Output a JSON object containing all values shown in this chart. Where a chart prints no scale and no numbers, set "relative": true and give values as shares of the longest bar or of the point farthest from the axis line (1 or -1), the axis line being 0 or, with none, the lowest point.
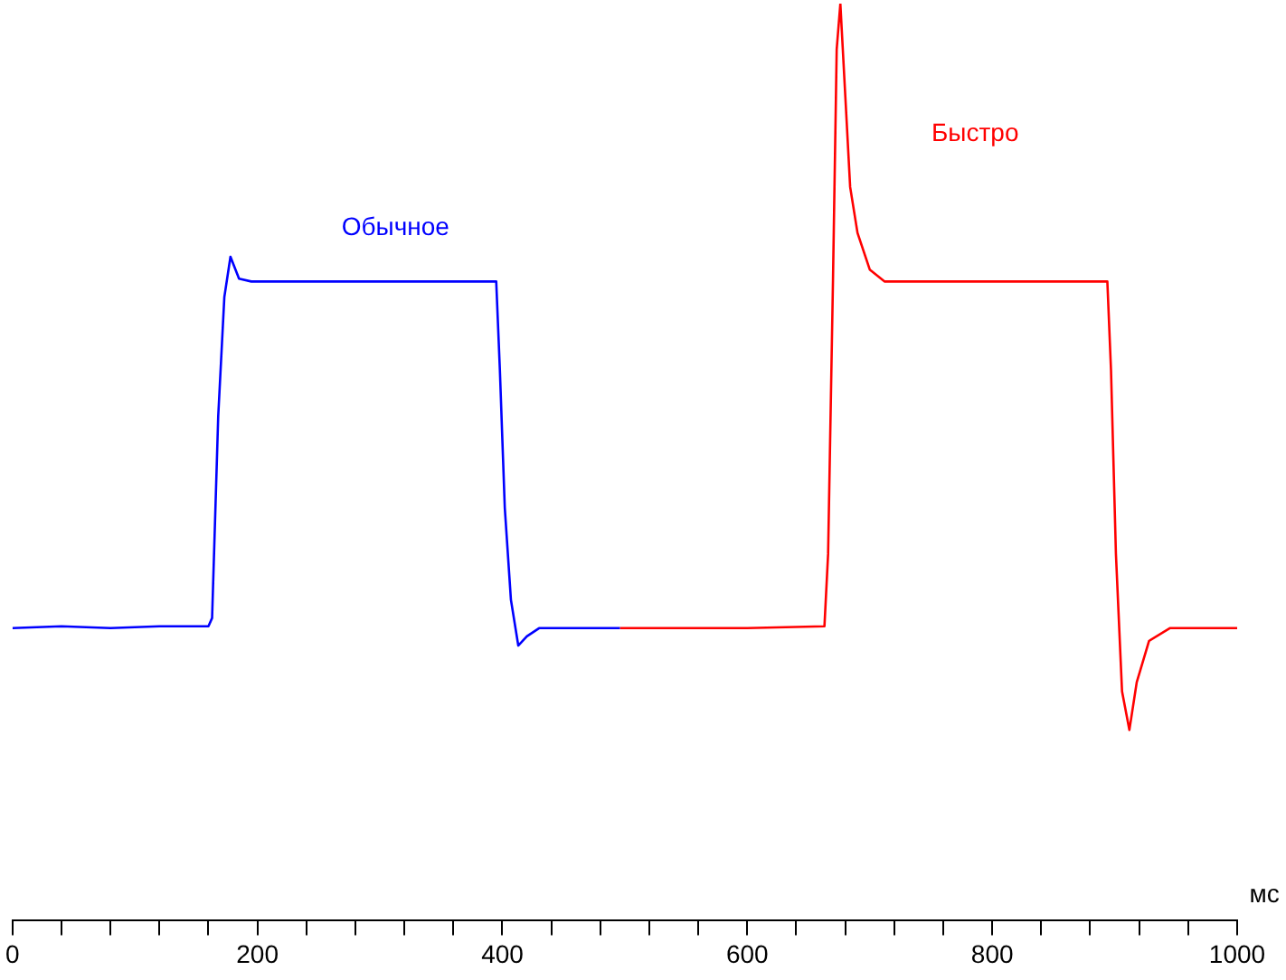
{
  "chart_data": {
    "type": "line",
    "relative": true,
    "xlabel": "мс",
    "xlim": [
      0,
      1000
    ],
    "xticks": [
      0,
      {
        "value": 40,
        "label": null
      },
      {
        "value": 80,
        "label": null
      },
      {
        "value": 120,
        "label": null
      },
      {
        "value": 160,
        "label": null
      },
      200,
      {
        "value": 240,
        "label": null
      },
      {
        "value": 280,
        "label": null
      },
      {
        "value": 320,
        "label": null
      },
      {
        "value": 360,
        "label": null
      },
      400,
      {
        "value": 440,
        "label": null
      },
      {
        "value": 480,
        "label": null
      },
      {
        "value": 520,
        "label": null
      },
      {
        "value": 560,
        "label": null
      },
      600,
      {
        "value": 640,
        "label": null
      },
      {
        "value": 680,
        "label": null
      },
      {
        "value": 720,
        "label": null
      },
      {
        "value": 760,
        "label": null
      },
      800,
      {
        "value": 840,
        "label": null
      },
      {
        "value": 880,
        "label": null
      },
      {
        "value": 920,
        "label": null
      },
      {
        "value": 960,
        "label": null
      },
      1000
    ],
    "marker": "none",
    "legend": false,
    "series": [
      {
        "name": "Обычное",
        "color": "#0000ff",
        "x": [
          0,
          40,
          80,
          120,
          160,
          163,
          168,
          173,
          178,
          185,
          195,
          250,
          300,
          395,
          398,
          402,
          407,
          413,
          420,
          430,
          496
        ],
        "values": [
          0.319,
          0.321,
          0.319,
          0.321,
          0.321,
          0.33,
          0.55,
          0.68,
          0.724,
          0.7,
          0.697,
          0.697,
          0.697,
          0.697,
          0.6,
          0.45,
          0.35,
          0.3,
          0.31,
          0.319,
          0.319
        ]
      },
      {
        "name": "Быстро",
        "color": "#ff0000",
        "x": [
          496,
          600,
          663,
          666,
          670,
          673,
          676,
          680,
          684,
          690,
          700,
          712,
          800,
          894,
          897,
          901,
          906,
          912,
          918,
          928,
          945,
          1000
        ],
        "values": [
          0.319,
          0.319,
          0.321,
          0.4,
          0.7,
          0.95,
          1,
          0.9,
          0.8,
          0.75,
          0.71,
          0.697,
          0.697,
          0.697,
          0.6,
          0.4,
          0.25,
          0.208,
          0.26,
          0.305,
          0.319,
          0.319
        ]
      }
    ]
  }
}
